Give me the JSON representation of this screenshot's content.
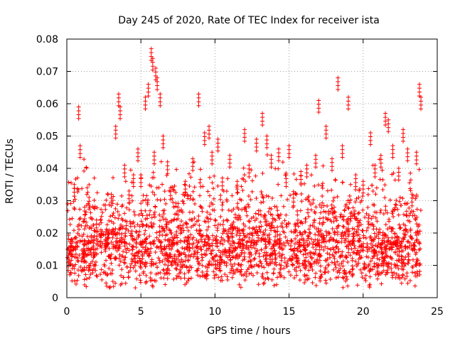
{
  "chart_data": {
    "type": "scatter",
    "title": "Day 245 of 2020, Rate Of TEC Index for receiver ista",
    "xlabel": "GPS time / hours",
    "ylabel": "ROTI / TECUs",
    "xlim": [
      0,
      25
    ],
    "ylim": [
      0,
      0.08
    ],
    "xticks": [
      0,
      5,
      10,
      15,
      20,
      25
    ],
    "xtick_labels": [
      "0",
      "5",
      "10",
      "15",
      "20",
      "25"
    ],
    "yticks": [
      0,
      0.01,
      0.02,
      0.03,
      0.04,
      0.05,
      0.06,
      0.07,
      0.08
    ],
    "ytick_labels": [
      "0",
      "0.01",
      "0.02",
      "0.03",
      "0.04",
      "0.05",
      "0.06",
      "0.07",
      "0.08"
    ],
    "grid": true,
    "marker": "plus",
    "series": [
      {
        "name": "ROTI",
        "color": "#ff0000",
        "x": [
          0.1,
          0.3,
          0.5,
          0.8,
          0.9,
          1.2,
          1.5,
          1.8,
          2.0,
          2.3,
          2.6,
          3.0,
          3.3,
          3.5,
          3.6,
          3.9,
          4.2,
          4.5,
          4.8,
          5.0,
          5.3,
          5.5,
          5.7,
          5.8,
          5.9,
          6.0,
          6.1,
          6.3,
          6.5,
          6.8,
          7.0,
          7.5,
          8.0,
          8.5,
          8.9,
          9.3,
          9.6,
          9.8,
          10.2,
          10.5,
          11.0,
          11.5,
          12.0,
          12.3,
          12.8,
          13.2,
          13.5,
          13.8,
          14.3,
          14.8,
          15.0,
          15.3,
          15.8,
          16.2,
          16.8,
          17.0,
          17.5,
          17.9,
          18.3,
          18.6,
          19.0,
          19.5,
          20.0,
          20.5,
          20.8,
          21.2,
          21.5,
          21.7,
          22.0,
          22.4,
          22.7,
          23.0,
          23.3,
          23.6,
          23.8,
          23.9
        ],
        "y": [
          0.012,
          0.018,
          0.035,
          0.059,
          0.047,
          0.028,
          0.031,
          0.016,
          0.024,
          0.021,
          0.018,
          0.032,
          0.053,
          0.063,
          0.059,
          0.041,
          0.033,
          0.038,
          0.046,
          0.038,
          0.062,
          0.066,
          0.077,
          0.074,
          0.045,
          0.071,
          0.068,
          0.063,
          0.05,
          0.042,
          0.034,
          0.028,
          0.036,
          0.043,
          0.063,
          0.051,
          0.053,
          0.045,
          0.049,
          0.037,
          0.044,
          0.036,
          0.052,
          0.041,
          0.049,
          0.057,
          0.05,
          0.044,
          0.046,
          0.038,
          0.047,
          0.032,
          0.039,
          0.041,
          0.044,
          0.061,
          0.053,
          0.043,
          0.068,
          0.047,
          0.062,
          0.038,
          0.036,
          0.051,
          0.041,
          0.044,
          0.057,
          0.055,
          0.047,
          0.04,
          0.052,
          0.046,
          0.032,
          0.045,
          0.066,
          0.062
        ]
      }
    ]
  }
}
